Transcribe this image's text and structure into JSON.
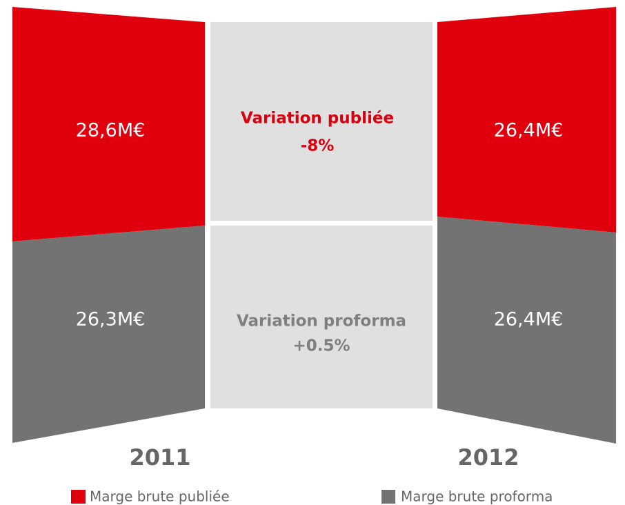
{
  "left": {
    "published": "28,6M€",
    "proforma": "26,3M€",
    "year": "2011"
  },
  "center": {
    "published_label": "Variation publiée",
    "published_value": "-8%",
    "proforma_label": "Variation proforma",
    "proforma_value": "+0.5%"
  },
  "right": {
    "published": "26,4M€",
    "proforma": "26,4M€",
    "year": "2012"
  },
  "legend": {
    "published": "Marge brute publiée",
    "proforma": "Marge brute proforma"
  }
}
